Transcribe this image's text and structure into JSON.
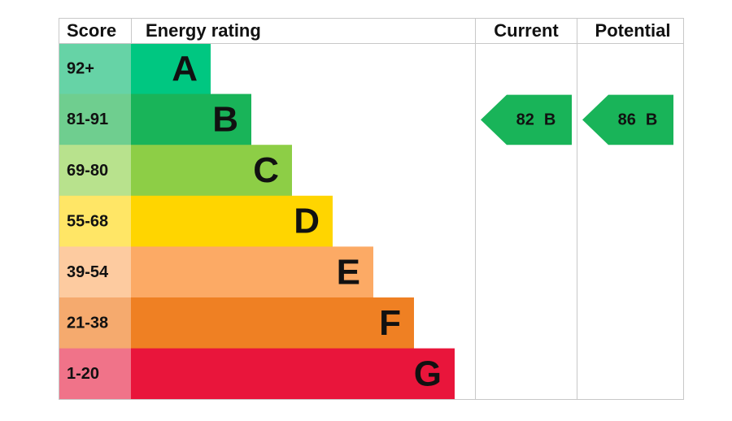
{
  "header": {
    "score": "Score",
    "energy_rating": "Energy rating",
    "current": "Current",
    "potential": "Potential"
  },
  "bands": [
    {
      "score": "92+",
      "letter": "A",
      "color": "#00c781",
      "score_color": "#66d3a6"
    },
    {
      "score": "81-91",
      "letter": "B",
      "color": "#19b459",
      "score_color": "#6fce8f"
    },
    {
      "score": "69-80",
      "letter": "C",
      "color": "#8dce46",
      "score_color": "#b8e28d"
    },
    {
      "score": "55-68",
      "letter": "D",
      "color": "#ffd500",
      "score_color": "#ffe666"
    },
    {
      "score": "39-54",
      "letter": "E",
      "color": "#fcaa65",
      "score_color": "#fdcba0"
    },
    {
      "score": "21-38",
      "letter": "F",
      "color": "#ef8023",
      "score_color": "#f5aa6e"
    },
    {
      "score": "1-20",
      "letter": "G",
      "color": "#e9153b",
      "score_color": "#f07389"
    }
  ],
  "current": {
    "value": 82,
    "letter": "B"
  },
  "potential": {
    "value": 86,
    "letter": "B"
  }
}
